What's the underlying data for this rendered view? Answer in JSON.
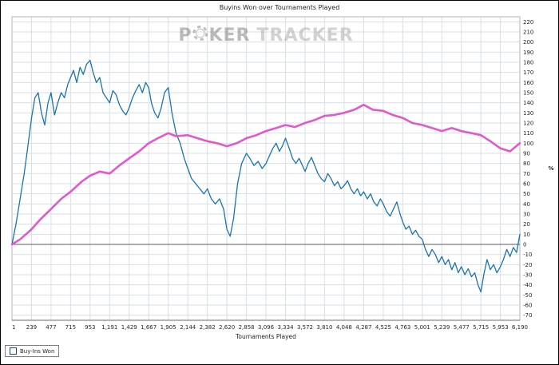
{
  "title": "Buyins Won over Tournaments Played",
  "watermark": {
    "part1": "P",
    "part2": "KER",
    "part3": "TRACKER"
  },
  "legend": {
    "label": "Buy-Ins Won",
    "color": "#1a74ad"
  },
  "colors": {
    "blue_series": "#1a74ad",
    "pink_series": "#e158ce",
    "gridline": "#d7dfe8",
    "zero_line": "#595959",
    "plot_border": "#aeb6bf"
  },
  "chart_data": {
    "type": "line",
    "title": "Buyins Won over Tournaments Played",
    "xlabel": "Tournaments Played",
    "ylabel": "%",
    "grid": true,
    "legend_position": "bottom-left",
    "xlim": [
      1,
      6190
    ],
    "ylim": [
      -75,
      225
    ],
    "x_ticks": [
      1,
      239,
      477,
      715,
      953,
      1191,
      1429,
      1667,
      1905,
      2144,
      2382,
      2620,
      2858,
      3096,
      3334,
      3572,
      3810,
      4048,
      4287,
      4525,
      4763,
      5001,
      5239,
      5477,
      5715,
      5953,
      6190
    ],
    "x_tick_labels": [
      "1",
      "239",
      "477",
      "715",
      "953",
      "1,191",
      "1,429",
      "1,667",
      "1,905",
      "2,144",
      "2,382",
      "2,620",
      "2,858",
      "3,096",
      "3,334",
      "3,572",
      "3,810",
      "4,048",
      "4,287",
      "4,525",
      "4,763",
      "5,001",
      "5,239",
      "5,477",
      "5,715",
      "5,953",
      "6,190"
    ],
    "y_ticks": [
      220,
      210,
      200,
      190,
      180,
      170,
      160,
      150,
      140,
      130,
      120,
      110,
      100,
      90,
      80,
      70,
      60,
      50,
      40,
      30,
      20,
      10,
      0,
      -10,
      -20,
      -30,
      -40,
      -50,
      -60,
      -70
    ],
    "series": [
      {
        "name": "Buy-Ins Won",
        "color": "#1a74ad",
        "width": 1.3,
        "points": [
          [
            1,
            0
          ],
          [
            50,
            20
          ],
          [
            100,
            45
          ],
          [
            150,
            70
          ],
          [
            200,
            100
          ],
          [
            239,
            125
          ],
          [
            280,
            145
          ],
          [
            320,
            150
          ],
          [
            360,
            130
          ],
          [
            400,
            118
          ],
          [
            440,
            140
          ],
          [
            477,
            150
          ],
          [
            520,
            128
          ],
          [
            560,
            140
          ],
          [
            600,
            150
          ],
          [
            640,
            145
          ],
          [
            680,
            158
          ],
          [
            715,
            165
          ],
          [
            750,
            172
          ],
          [
            790,
            160
          ],
          [
            830,
            175
          ],
          [
            870,
            168
          ],
          [
            910,
            178
          ],
          [
            953,
            182
          ],
          [
            990,
            170
          ],
          [
            1030,
            160
          ],
          [
            1070,
            165
          ],
          [
            1110,
            150
          ],
          [
            1150,
            145
          ],
          [
            1191,
            140
          ],
          [
            1230,
            152
          ],
          [
            1270,
            148
          ],
          [
            1310,
            138
          ],
          [
            1350,
            132
          ],
          [
            1390,
            128
          ],
          [
            1429,
            135
          ],
          [
            1470,
            145
          ],
          [
            1510,
            152
          ],
          [
            1550,
            158
          ],
          [
            1590,
            150
          ],
          [
            1630,
            160
          ],
          [
            1667,
            155
          ],
          [
            1700,
            140
          ],
          [
            1740,
            130
          ],
          [
            1780,
            125
          ],
          [
            1820,
            135
          ],
          [
            1860,
            150
          ],
          [
            1905,
            155
          ],
          [
            1950,
            130
          ],
          [
            2000,
            110
          ],
          [
            2050,
            100
          ],
          [
            2100,
            85
          ],
          [
            2144,
            75
          ],
          [
            2190,
            65
          ],
          [
            2240,
            60
          ],
          [
            2290,
            55
          ],
          [
            2340,
            50
          ],
          [
            2382,
            55
          ],
          [
            2430,
            45
          ],
          [
            2480,
            40
          ],
          [
            2530,
            45
          ],
          [
            2580,
            35
          ],
          [
            2620,
            15
          ],
          [
            2660,
            8
          ],
          [
            2700,
            25
          ],
          [
            2750,
            60
          ],
          [
            2800,
            80
          ],
          [
            2858,
            90
          ],
          [
            2900,
            85
          ],
          [
            2950,
            78
          ],
          [
            3000,
            82
          ],
          [
            3050,
            75
          ],
          [
            3096,
            80
          ],
          [
            3140,
            88
          ],
          [
            3180,
            95
          ],
          [
            3220,
            100
          ],
          [
            3260,
            92
          ],
          [
            3300,
            98
          ],
          [
            3334,
            105
          ],
          [
            3380,
            95
          ],
          [
            3420,
            85
          ],
          [
            3460,
            80
          ],
          [
            3500,
            85
          ],
          [
            3540,
            78
          ],
          [
            3572,
            72
          ],
          [
            3610,
            80
          ],
          [
            3650,
            86
          ],
          [
            3690,
            78
          ],
          [
            3730,
            70
          ],
          [
            3770,
            65
          ],
          [
            3810,
            62
          ],
          [
            3850,
            70
          ],
          [
            3890,
            65
          ],
          [
            3930,
            58
          ],
          [
            3970,
            62
          ],
          [
            4010,
            55
          ],
          [
            4048,
            58
          ],
          [
            4090,
            63
          ],
          [
            4130,
            55
          ],
          [
            4170,
            50
          ],
          [
            4210,
            55
          ],
          [
            4250,
            48
          ],
          [
            4287,
            52
          ],
          [
            4330,
            45
          ],
          [
            4370,
            50
          ],
          [
            4410,
            42
          ],
          [
            4450,
            38
          ],
          [
            4490,
            45
          ],
          [
            4525,
            40
          ],
          [
            4570,
            32
          ],
          [
            4610,
            28
          ],
          [
            4650,
            35
          ],
          [
            4690,
            42
          ],
          [
            4730,
            30
          ],
          [
            4763,
            22
          ],
          [
            4800,
            15
          ],
          [
            4840,
            18
          ],
          [
            4880,
            10
          ],
          [
            4920,
            14
          ],
          [
            4960,
            8
          ],
          [
            5001,
            5
          ],
          [
            5040,
            -5
          ],
          [
            5080,
            -12
          ],
          [
            5120,
            -5
          ],
          [
            5160,
            -10
          ],
          [
            5200,
            -18
          ],
          [
            5239,
            -12
          ],
          [
            5280,
            -20
          ],
          [
            5320,
            -15
          ],
          [
            5360,
            -25
          ],
          [
            5400,
            -18
          ],
          [
            5440,
            -28
          ],
          [
            5477,
            -22
          ],
          [
            5520,
            -30
          ],
          [
            5560,
            -24
          ],
          [
            5600,
            -32
          ],
          [
            5640,
            -28
          ],
          [
            5680,
            -40
          ],
          [
            5715,
            -47
          ],
          [
            5750,
            -30
          ],
          [
            5790,
            -15
          ],
          [
            5830,
            -25
          ],
          [
            5870,
            -20
          ],
          [
            5910,
            -28
          ],
          [
            5953,
            -22
          ],
          [
            5990,
            -15
          ],
          [
            6030,
            -5
          ],
          [
            6070,
            -12
          ],
          [
            6110,
            -3
          ],
          [
            6150,
            -8
          ],
          [
            6190,
            10
          ]
        ]
      },
      {
        "name": "",
        "color": "#e158ce",
        "width": 2.6,
        "points": [
          [
            1,
            0
          ],
          [
            100,
            5
          ],
          [
            200,
            12
          ],
          [
            239,
            15
          ],
          [
            350,
            25
          ],
          [
            477,
            35
          ],
          [
            600,
            45
          ],
          [
            715,
            52
          ],
          [
            850,
            62
          ],
          [
            953,
            68
          ],
          [
            1070,
            72
          ],
          [
            1191,
            70
          ],
          [
            1310,
            78
          ],
          [
            1429,
            85
          ],
          [
            1550,
            92
          ],
          [
            1667,
            100
          ],
          [
            1780,
            105
          ],
          [
            1905,
            110
          ],
          [
            2000,
            107
          ],
          [
            2144,
            108
          ],
          [
            2260,
            105
          ],
          [
            2382,
            102
          ],
          [
            2500,
            100
          ],
          [
            2620,
            97
          ],
          [
            2740,
            100
          ],
          [
            2858,
            105
          ],
          [
            2980,
            108
          ],
          [
            3096,
            112
          ],
          [
            3220,
            115
          ],
          [
            3334,
            118
          ],
          [
            3450,
            116
          ],
          [
            3572,
            120
          ],
          [
            3690,
            123
          ],
          [
            3810,
            127
          ],
          [
            3930,
            128
          ],
          [
            4048,
            130
          ],
          [
            4170,
            133
          ],
          [
            4287,
            138
          ],
          [
            4400,
            133
          ],
          [
            4525,
            132
          ],
          [
            4640,
            128
          ],
          [
            4763,
            125
          ],
          [
            4880,
            120
          ],
          [
            5001,
            118
          ],
          [
            5120,
            115
          ],
          [
            5239,
            112
          ],
          [
            5360,
            115
          ],
          [
            5477,
            112
          ],
          [
            5600,
            110
          ],
          [
            5715,
            108
          ],
          [
            5830,
            102
          ],
          [
            5953,
            95
          ],
          [
            6070,
            92
          ],
          [
            6190,
            100
          ]
        ]
      }
    ]
  }
}
